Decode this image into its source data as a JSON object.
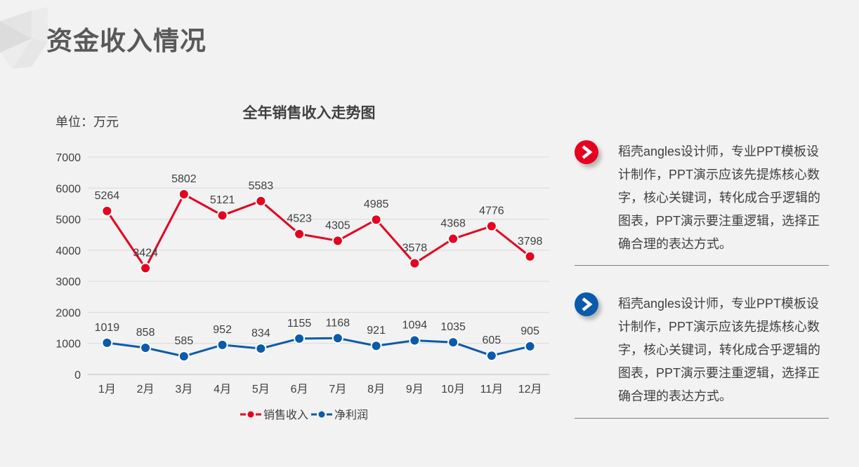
{
  "page": {
    "title": "资金收入情况",
    "unit_label": "单位：万元"
  },
  "notes": [
    {
      "icon": "chevron-right-icon",
      "color": "#e60020",
      "lines": [
        "稻壳angles设计师，专业PPT模板设",
        "计制作，PPT演示应该先提炼核心数",
        "字，核心关键词，转化成合乎逻辑的",
        "图表，PPT演示要注重逻辑，选择正",
        "确合理的表达方式。"
      ]
    },
    {
      "icon": "chevron-right-icon",
      "color": "#0a5bab",
      "lines": [
        "稻壳angles设计师，专业PPT模板设",
        "计制作，PPT演示应该先提炼核心数",
        "字，核心关键词，转化成合乎逻辑的",
        "图表，PPT演示要注重逻辑，选择正",
        "确合理的表达方式。"
      ]
    }
  ],
  "chart_data": {
    "type": "line",
    "title": "全年销售收入走势图",
    "categories": [
      "1月",
      "2月",
      "3月",
      "4月",
      "5月",
      "6月",
      "7月",
      "8月",
      "9月",
      "10月",
      "11月",
      "12月"
    ],
    "series": [
      {
        "name": "销售收入",
        "color": "#e60020",
        "values": [
          5264,
          3424,
          5802,
          5121,
          5583,
          4523,
          4305,
          4985,
          3578,
          4368,
          4776,
          3798
        ]
      },
      {
        "name": "净利润",
        "color": "#0a5bab",
        "values": [
          1019,
          858,
          585,
          952,
          834,
          1155,
          1168,
          921,
          1094,
          1035,
          605,
          905
        ]
      }
    ],
    "ylim": [
      0,
      7000
    ],
    "yticks": [
      0,
      1000,
      2000,
      3000,
      4000,
      5000,
      6000,
      7000
    ],
    "grid": true,
    "data_labels": true,
    "legend": "bottom"
  }
}
